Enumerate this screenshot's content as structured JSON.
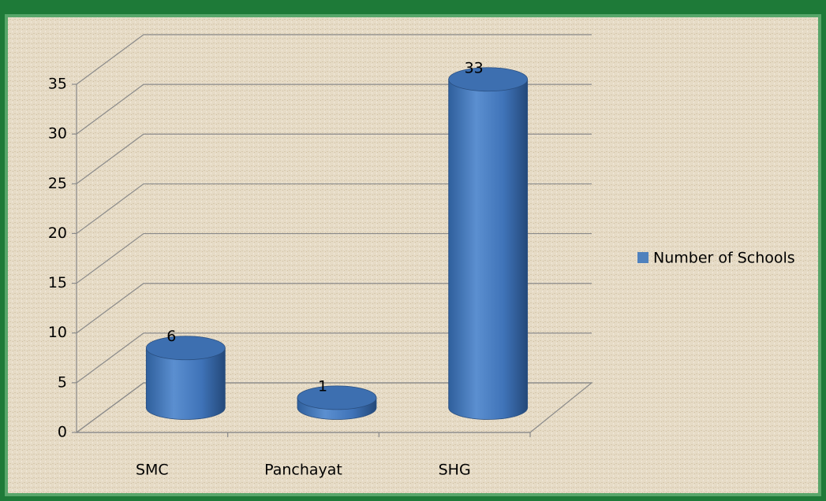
{
  "chart_data": {
    "type": "bar",
    "categories": [
      "SMC",
      "Panchayat",
      "SHG"
    ],
    "series": [
      {
        "name": "Number of Schools",
        "color": "#4f81bd",
        "values": [
          6,
          1,
          33
        ]
      }
    ],
    "ylim": [
      0,
      35
    ],
    "yticks": [
      0,
      5,
      10,
      15,
      20,
      25,
      30,
      35
    ],
    "grid": true,
    "legend": "right"
  }
}
